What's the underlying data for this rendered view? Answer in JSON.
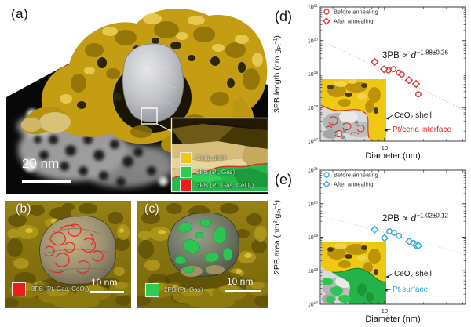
{
  "panel_a": {
    "label": "(a)",
    "scalebar_label": "20 nm",
    "inset_legend": [
      {
        "label": "Ceria shell",
        "color": "#f0c618"
      },
      {
        "label": "2PB (Pt, Gas)",
        "color": "#2ecc52"
      },
      {
        "label": "3PB (Pt, Gas, CeO₂)",
        "color": "#ea1c1c"
      }
    ]
  },
  "panel_b": {
    "label": "(b)",
    "key_label": "3PB (Pt, Gas, CeO₂)",
    "key_color": "#ea1c1c",
    "scalebar_label": "10 nm"
  },
  "panel_c": {
    "label": "(c)",
    "key_label": "2PB (Pt, Gas)",
    "key_color": "#2ecc52",
    "scalebar_label": "10 nm"
  },
  "chart_data": [
    {
      "id": "d",
      "panel_label": "(d)",
      "type": "scatter",
      "x_label": "Diameter (nm)",
      "y_label_parts": [
        {
          "t": "3PB length (nm g"
        },
        {
          "t": "Pt",
          "s": "sub"
        },
        {
          "t": "−1",
          "s": "sup"
        },
        {
          "t": ")"
        }
      ],
      "x_scale": "log",
      "y_scale": "log",
      "x_range": [
        3.2,
        42
      ],
      "y_range": [
        1e+17,
        1e+21
      ],
      "grid": false,
      "legend_position": "top-left",
      "x_major_ticks": [
        {
          "v": 10,
          "label": "10"
        }
      ],
      "x_minor_ticks": [
        4,
        5,
        6,
        7,
        8,
        9,
        20,
        30,
        40
      ],
      "y_tick_exponents": [
        17,
        18,
        19,
        20,
        21
      ],
      "marker_color": "#e4383c",
      "trend_color": "#f2b2b2",
      "legend": [
        {
          "marker": "circle",
          "label": "Before annealing"
        },
        {
          "marker": "diamond",
          "label": "After annealing"
        }
      ],
      "annotation": {
        "pre": "3PB ∝",
        "var": "d",
        "exp": "−1.88±0.26"
      },
      "series": [
        {
          "name": "Before annealing",
          "marker": "circle",
          "points": [
            [
              10.7,
              1.3e+19
            ],
            [
              11.7,
              1.4e+19
            ],
            [
              12.9,
              1.1e+19
            ],
            [
              13.6,
              9.7e+18
            ],
            [
              18.2,
              2.5e+18
            ]
          ]
        },
        {
          "name": "After annealing",
          "marker": "diamond",
          "points": [
            [
              8.4,
              2.3e+19
            ],
            [
              9.9,
              1.4e+19
            ],
            [
              15.4,
              6.6e+18
            ],
            [
              17.5,
              5.1e+18
            ]
          ]
        }
      ],
      "trend_line": [
        [
          3.2,
          1.05e+20
        ],
        [
          42,
          8.1e+17
        ]
      ],
      "inset_labels": [
        {
          "text": "CeO₂ shell",
          "color": "#151515",
          "x": 157,
          "y": 150,
          "ax": 146,
          "ay": 151
        },
        {
          "text": "Pt/ceria interface",
          "color": "#e02420",
          "x": 155,
          "y": 168,
          "ax": 144,
          "ay": 166
        }
      ]
    },
    {
      "id": "e",
      "panel_label": "(e)",
      "type": "scatter",
      "x_label": "Diameter (nm)",
      "y_label_parts": [
        {
          "t": "2PB area (nm"
        },
        {
          "t": "2",
          "s": "sup"
        },
        {
          "t": " g"
        },
        {
          "t": "Pt",
          "s": "sub"
        },
        {
          "t": "−1",
          "s": "sup"
        },
        {
          "t": ")"
        }
      ],
      "x_scale": "log",
      "y_scale": "log",
      "x_range": [
        3.2,
        42
      ],
      "y_range": [
        1e+17,
        1e+21
      ],
      "grid": false,
      "legend_position": "top-left",
      "x_major_ticks": [
        {
          "v": 10,
          "label": "10"
        }
      ],
      "x_minor_ticks": [
        4,
        5,
        6,
        7,
        8,
        9,
        20,
        30,
        40
      ],
      "y_tick_exponents": [
        17,
        18,
        19,
        20,
        21
      ],
      "marker_color": "#3fa8dc",
      "trend_color": "#b5ddf0",
      "legend": [
        {
          "marker": "circle",
          "label": "Before annealing"
        },
        {
          "marker": "diamond",
          "label": "After annealing"
        }
      ],
      "annotation": {
        "pre": "2PB ∝",
        "var": "d",
        "exp": "−1.02±0.12"
      },
      "series": [
        {
          "name": "Before annealing",
          "marker": "circle",
          "points": [
            [
              10.9,
              1.5e+19
            ],
            [
              11.8,
              1.35e+19
            ],
            [
              12.9,
              1.1e+19
            ],
            [
              16.7,
              6.7e+18
            ]
          ]
        },
        {
          "name": "After annealing",
          "marker": "diamond",
          "points": [
            [
              8.4,
              1.7e+19
            ],
            [
              10.0,
              9.5e+18
            ],
            [
              15.5,
              7.5e+18
            ],
            [
              17.5,
              5.7e+18
            ],
            [
              18.2,
              5.6e+18
            ]
          ]
        }
      ],
      "trend_line": [
        [
          3.2,
          4.4e+19
        ],
        [
          42,
          3.2e+18
        ]
      ],
      "inset_labels": [
        {
          "text": "CeO₂ shell",
          "color": "#151515",
          "x": 157,
          "y": 144,
          "ax": 146,
          "ay": 145
        },
        {
          "text": "Pt surface",
          "color": "#2fa5dd",
          "x": 155,
          "y": 164,
          "ax": 144,
          "ay": 162
        }
      ]
    }
  ]
}
